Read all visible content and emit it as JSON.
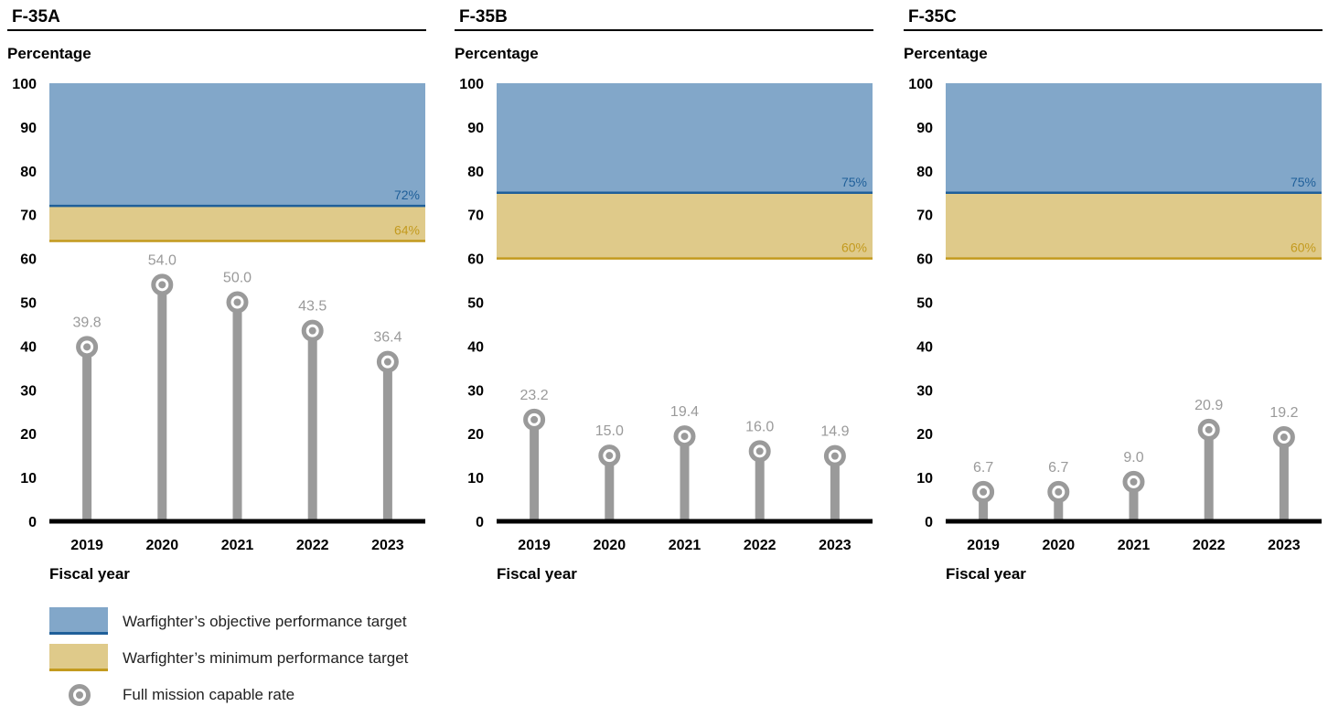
{
  "colors": {
    "objective_fill": "#82a7c9",
    "objective_line": "#1f5f99",
    "minimum_fill": "#dfca8a",
    "minimum_line": "#c39a1e",
    "stem": "#9a9a9a",
    "value_label": "#9a9a9a",
    "axis": "#000000"
  },
  "legend": {
    "objective_label": "Warfighter’s objective performance target",
    "minimum_label": "Warfighter’s minimum performance target",
    "fmc_label": "Full mission capable rate"
  },
  "chart_data": [
    {
      "type": "lollipop",
      "title": "F-35A",
      "ylabel": "Percentage",
      "xlabel": "Fiscal year",
      "ylim": [
        0,
        100
      ],
      "yticks": [
        "0",
        "10",
        "20",
        "30",
        "40",
        "50",
        "60",
        "70",
        "80",
        "90",
        "100"
      ],
      "categories": [
        "2019",
        "2020",
        "2021",
        "2022",
        "2023"
      ],
      "values": [
        39.8,
        54.0,
        50.0,
        43.5,
        36.4
      ],
      "value_labels": [
        "39.8",
        "54.0",
        "50.0",
        "43.5",
        "36.4"
      ],
      "objective_target": 72,
      "objective_target_label": "72%",
      "minimum_target": 64,
      "minimum_target_label": "64%"
    },
    {
      "type": "lollipop",
      "title": "F-35B",
      "ylabel": "Percentage",
      "xlabel": "Fiscal year",
      "ylim": [
        0,
        100
      ],
      "yticks": [
        "0",
        "10",
        "20",
        "30",
        "40",
        "50",
        "60",
        "70",
        "80",
        "90",
        "100"
      ],
      "categories": [
        "2019",
        "2020",
        "2021",
        "2022",
        "2023"
      ],
      "values": [
        23.2,
        15.0,
        19.4,
        16.0,
        14.9
      ],
      "value_labels": [
        "23.2",
        "15.0",
        "19.4",
        "16.0",
        "14.9"
      ],
      "objective_target": 75,
      "objective_target_label": "75%",
      "minimum_target": 60,
      "minimum_target_label": "60%"
    },
    {
      "type": "lollipop",
      "title": "F-35C",
      "ylabel": "Percentage",
      "xlabel": "Fiscal year",
      "ylim": [
        0,
        100
      ],
      "yticks": [
        "0",
        "10",
        "20",
        "30",
        "40",
        "50",
        "60",
        "70",
        "80",
        "90",
        "100"
      ],
      "categories": [
        "2019",
        "2020",
        "2021",
        "2022",
        "2023"
      ],
      "values": [
        6.7,
        6.7,
        9.0,
        20.9,
        19.2
      ],
      "value_labels": [
        "6.7",
        "6.7",
        "9.0",
        "20.9",
        "19.2"
      ],
      "objective_target": 75,
      "objective_target_label": "75%",
      "minimum_target": 60,
      "minimum_target_label": "60%"
    }
  ]
}
